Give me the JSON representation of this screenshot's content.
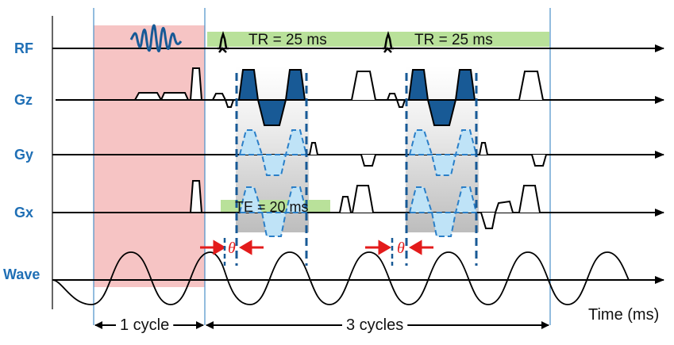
{
  "rows": [
    {
      "key": "rf",
      "label": "RF"
    },
    {
      "key": "gz",
      "label": "Gz"
    },
    {
      "key": "gy",
      "label": "Gy"
    },
    {
      "key": "gx",
      "label": "Gx"
    },
    {
      "key": "wave",
      "label": "Wave"
    }
  ],
  "annotations": {
    "tr1": "TR = 25 ms",
    "tr2": "TR = 25 ms",
    "te": "TE = 20 ms",
    "theta": "θ",
    "cycle1": "1 cycle",
    "cycles3": "3 cycles",
    "time_axis": "Time (ms)"
  },
  "colors": {
    "label_blue": "#1f6fb5",
    "pulse_blue": "#185a96",
    "dashed_blue": "#2a7fc8",
    "light_blue_fill": "#bfe3f7",
    "pink_region": "#f6c4c4",
    "green_bar": "#b9e19a",
    "red_arrow": "#e31b1b",
    "vertical_line": "#4a8fc9"
  }
}
